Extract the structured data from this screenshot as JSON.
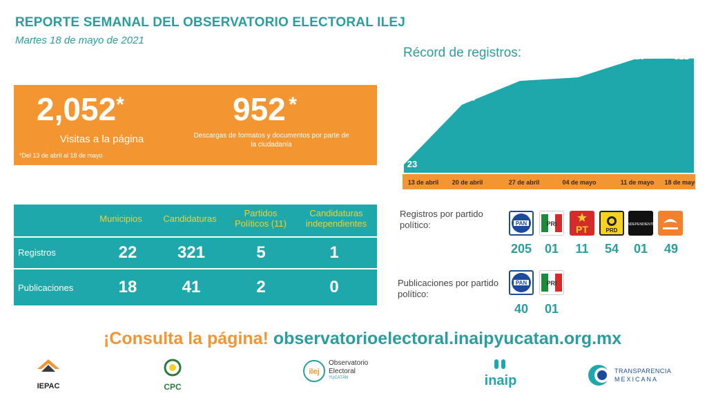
{
  "header": {
    "title": "REPORTE SEMANAL DEL OBSERVATORIO ELECTORAL ILEJ",
    "date": "Martes 18 de mayo de 2021"
  },
  "visits": {
    "value": "2,052",
    "asterisk": "*",
    "label": "Visitas a la página",
    "note": "*Del 13 de abril al 18 de mayo"
  },
  "downloads": {
    "value": "952",
    "asterisk": "*",
    "label": "Descargas de formatos y documentos por parte de la ciudadanía"
  },
  "chart_data": {
    "type": "area",
    "title": "Récord de registros:",
    "categories": [
      "13 de abril",
      "20 de abril",
      "27 de abril",
      "04 de mayo",
      "11 de mayo",
      "18 de mayo"
    ],
    "values": [
      23,
      191,
      258,
      268,
      320,
      321
    ],
    "colors": {
      "area": "#1fa8ac",
      "axis_band": "#f39531"
    }
  },
  "table": {
    "headers": [
      "Municipios",
      "Candidaturas",
      "Partidos Políticos (11)",
      "Candidaturas independientes"
    ],
    "rows": [
      {
        "label": "Registros",
        "values": [
          "22",
          "321",
          "5",
          "1"
        ]
      },
      {
        "label": "Publicaciones",
        "values": [
          "18",
          "41",
          "2",
          "0"
        ]
      }
    ]
  },
  "registros_partido": {
    "title": "Registros por partido político:",
    "parties": [
      {
        "name": "PAN",
        "count": "205",
        "icon": "pan-logo"
      },
      {
        "name": "PRI",
        "count": "01",
        "icon": "pri-logo"
      },
      {
        "name": "PT",
        "count": "11",
        "icon": "pt-logo"
      },
      {
        "name": "PRD",
        "count": "54",
        "icon": "prd-logo"
      },
      {
        "name": "INDEPENDIENTE",
        "count": "01",
        "icon": "independiente-logo"
      },
      {
        "name": "CIUDADANOS",
        "count": "49",
        "icon": "mc-logo"
      }
    ]
  },
  "publicaciones_partido": {
    "title": "Publicaciones por partido político:",
    "parties": [
      {
        "name": "PAN",
        "count": "40",
        "icon": "pan-logo"
      },
      {
        "name": "PRI",
        "count": "01",
        "icon": "pri-logo"
      }
    ]
  },
  "cta": {
    "prefix": "¡Consulta la página!",
    "url": "observatorioelectoral.inaipyucatan.org.mx"
  },
  "footer": {
    "iepac": "IEPAC",
    "cpc": "CPC",
    "ilej_line1": "Observatorio",
    "ilej_line2": "Electoral",
    "ilej_line3": "YUCATÁN",
    "ilej_mark": "ilej",
    "inaip": "inaip",
    "tm_line1": "TRANSPARENCIA",
    "tm_line2": "MEXICANA"
  },
  "colors": {
    "teal": "#2a9d9e",
    "orange": "#f39531",
    "yellow": "#f1d02c",
    "table": "#1fa8ac"
  }
}
